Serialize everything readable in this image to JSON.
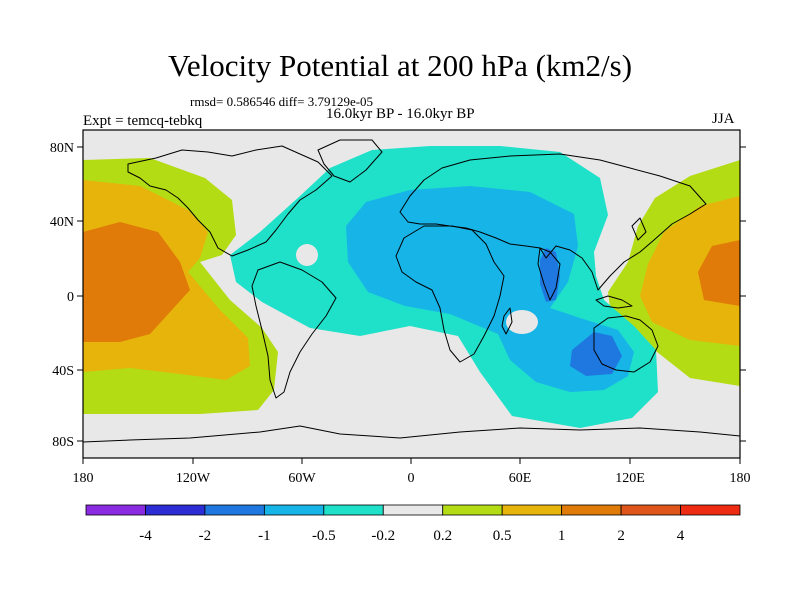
{
  "header": {
    "title": "Velocity Potential at 200 hPa (km2/s)",
    "stats": "rmsd= 0.586546 diff= 3.79129e-05",
    "experiment": "Expt = temcq-tebkq",
    "period": "16.0kyr BP - 16.0kyr BP",
    "season": "JJA"
  },
  "map": {
    "projection": "cylindrical-equidistant",
    "lat_ticks": [
      "80N",
      "40N",
      "0",
      "40S",
      "80S"
    ],
    "lon_ticks": [
      "180",
      "120W",
      "60W",
      "0",
      "60E",
      "120E",
      "180"
    ]
  },
  "colorbar": {
    "colors": [
      "#8a2be2",
      "#2d2dd6",
      "#1f78e0",
      "#17b4e8",
      "#1fe0c8",
      "#e8e8e8",
      "#b4dc14",
      "#e6b40a",
      "#e07a08",
      "#e0561a",
      "#ee2c14"
    ],
    "labels": [
      "-4",
      "-2",
      "-1",
      "-0.5",
      "-0.2",
      "0.2",
      "0.5",
      "1",
      "2",
      "4"
    ]
  }
}
